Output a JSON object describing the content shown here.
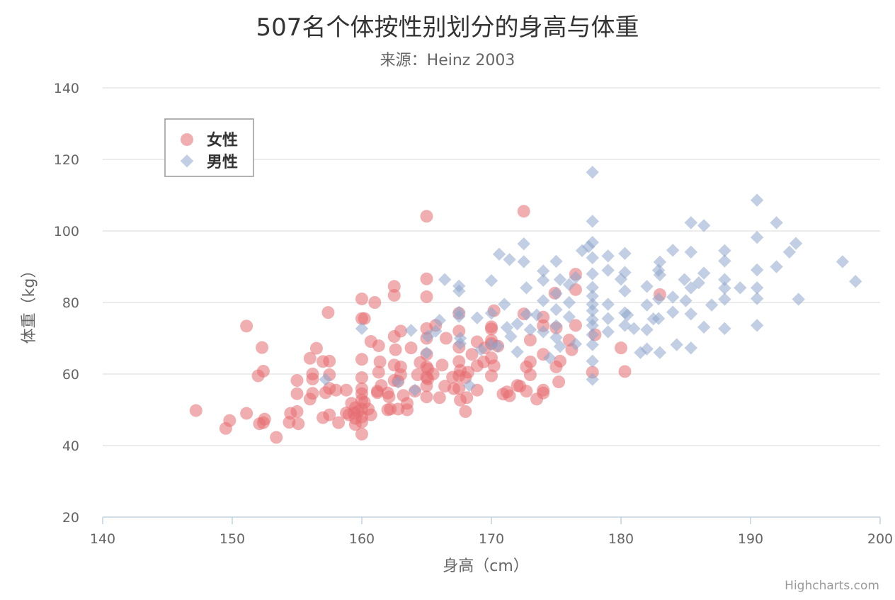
{
  "chart_data": {
    "type": "scatter",
    "title": "507名个体按性别划分的身高与体重",
    "subtitle": "来源：Heinz 2003",
    "xlabel": "身高（cm）",
    "ylabel": "体重（kg）",
    "xlim": [
      140,
      200
    ],
    "ylim": [
      20,
      140
    ],
    "xticks": [
      "140",
      "150",
      "160",
      "170",
      "180",
      "190",
      "200"
    ],
    "yticks": [
      "20",
      "40",
      "60",
      "80",
      "100",
      "120",
      "140"
    ],
    "grid": true,
    "legend": "top-left",
    "credits": "Highcharts.com",
    "series": [
      {
        "name": "女性",
        "color": "#e56b6f",
        "marker": "circle",
        "points": [
          [
            147.2,
            49.8
          ],
          [
            149.5,
            44.8
          ],
          [
            149.8,
            47.0
          ],
          [
            151.1,
            73.4
          ],
          [
            151.1,
            49.0
          ],
          [
            152.0,
            59.5
          ],
          [
            152.1,
            46.1
          ],
          [
            152.3,
            67.4
          ],
          [
            152.4,
            60.8
          ],
          [
            152.4,
            46.4
          ],
          [
            152.5,
            47.4
          ],
          [
            153.4,
            42.3
          ],
          [
            154.4,
            46.5
          ],
          [
            154.5,
            49.0
          ],
          [
            155.0,
            49.5
          ],
          [
            155.0,
            58.2
          ],
          [
            155.0,
            54.5
          ],
          [
            155.1,
            46.1
          ],
          [
            156.0,
            64.4
          ],
          [
            156.0,
            53.0
          ],
          [
            156.2,
            60.0
          ],
          [
            156.2,
            58.6
          ],
          [
            156.2,
            54.6
          ],
          [
            156.5,
            67.2
          ],
          [
            157.0,
            47.8
          ],
          [
            157.0,
            63.5
          ],
          [
            157.2,
            54.8
          ],
          [
            157.4,
            77.2
          ],
          [
            157.5,
            59.8
          ],
          [
            157.5,
            63.6
          ],
          [
            157.5,
            48.6
          ],
          [
            157.5,
            56.0
          ],
          [
            158.0,
            55.5
          ],
          [
            158.2,
            46.4
          ],
          [
            158.8,
            55.5
          ],
          [
            158.8,
            49.1
          ],
          [
            159.0,
            48.6
          ],
          [
            159.2,
            51.8
          ],
          [
            159.4,
            49.1
          ],
          [
            159.5,
            47.6
          ],
          [
            159.5,
            50.6
          ],
          [
            159.5,
            45.9
          ],
          [
            159.7,
            49.5
          ],
          [
            160.0,
            81.0
          ],
          [
            160.0,
            75.5
          ],
          [
            160.0,
            64.1
          ],
          [
            160.0,
            59.0
          ],
          [
            160.0,
            55.9
          ],
          [
            160.0,
            54.5
          ],
          [
            160.0,
            52.7
          ],
          [
            160.0,
            50.2
          ],
          [
            160.0,
            48.0
          ],
          [
            160.0,
            46.6
          ],
          [
            160.0,
            43.2
          ],
          [
            160.2,
            75.5
          ],
          [
            160.2,
            52.1
          ],
          [
            160.5,
            50.2
          ],
          [
            160.7,
            48.6
          ],
          [
            160.7,
            69.1
          ],
          [
            161.0,
            80.0
          ],
          [
            161.2,
            55.2
          ],
          [
            161.2,
            54.8
          ],
          [
            161.3,
            67.9
          ],
          [
            161.3,
            60.5
          ],
          [
            161.4,
            63.4
          ],
          [
            161.5,
            56.8
          ],
          [
            162.0,
            54.7
          ],
          [
            162.0,
            50.0
          ],
          [
            162.1,
            53.6
          ],
          [
            162.2,
            50.2
          ],
          [
            162.5,
            84.5
          ],
          [
            162.5,
            82.0
          ],
          [
            162.5,
            70.5
          ],
          [
            162.5,
            62.5
          ],
          [
            162.5,
            58.2
          ],
          [
            162.6,
            66.8
          ],
          [
            162.8,
            58.0
          ],
          [
            162.8,
            50.2
          ],
          [
            163.0,
            72.0
          ],
          [
            163.0,
            62.0
          ],
          [
            163.0,
            59.8
          ],
          [
            163.2,
            54.0
          ],
          [
            163.5,
            50.0
          ],
          [
            163.5,
            51.8
          ],
          [
            163.8,
            67.3
          ],
          [
            164.1,
            55.2
          ],
          [
            164.3,
            59.8
          ],
          [
            164.5,
            63.2
          ],
          [
            165.0,
            104.1
          ],
          [
            165.0,
            86.6
          ],
          [
            165.0,
            81.6
          ],
          [
            165.0,
            72.7
          ],
          [
            165.0,
            70.0
          ],
          [
            165.0,
            65.5
          ],
          [
            165.0,
            62.0
          ],
          [
            165.0,
            59.1
          ],
          [
            165.0,
            56.7
          ],
          [
            165.0,
            53.6
          ],
          [
            165.1,
            61.4
          ],
          [
            165.1,
            58.6
          ],
          [
            165.5,
            60.0
          ],
          [
            165.7,
            73.6
          ],
          [
            166.0,
            53.4
          ],
          [
            166.2,
            62.5
          ],
          [
            166.4,
            56.6
          ],
          [
            166.5,
            70.0
          ],
          [
            167.0,
            59.1
          ],
          [
            167.1,
            55.9
          ],
          [
            167.5,
            77.0
          ],
          [
            167.5,
            72.0
          ],
          [
            167.5,
            67.5
          ],
          [
            167.5,
            63.5
          ],
          [
            167.5,
            59.5
          ],
          [
            167.5,
            56.0
          ],
          [
            167.6,
            61.0
          ],
          [
            167.6,
            52.7
          ],
          [
            168.0,
            59.0
          ],
          [
            168.0,
            49.5
          ],
          [
            168.1,
            53.4
          ],
          [
            168.2,
            60.5
          ],
          [
            168.5,
            65.5
          ],
          [
            168.9,
            69.0
          ],
          [
            168.9,
            62.3
          ],
          [
            168.9,
            55.5
          ],
          [
            169.4,
            63.4
          ],
          [
            169.5,
            67.3
          ],
          [
            170.0,
            73.2
          ],
          [
            170.0,
            72.6
          ],
          [
            170.0,
            69.4
          ],
          [
            170.0,
            68.5
          ],
          [
            170.0,
            64.5
          ],
          [
            170.0,
            59.5
          ],
          [
            170.2,
            77.7
          ],
          [
            170.2,
            62.3
          ],
          [
            170.5,
            67.8
          ],
          [
            170.9,
            54.4
          ],
          [
            171.2,
            55.0
          ],
          [
            171.4,
            53.9
          ],
          [
            172.0,
            56.8
          ],
          [
            172.2,
            56.6
          ],
          [
            172.5,
            105.5
          ],
          [
            172.5,
            76.8
          ],
          [
            172.7,
            62.0
          ],
          [
            172.7,
            55.2
          ],
          [
            173.0,
            69.5
          ],
          [
            173.0,
            63.4
          ],
          [
            173.0,
            59.8
          ],
          [
            173.5,
            53.0
          ],
          [
            174.0,
            75.9
          ],
          [
            174.0,
            73.5
          ],
          [
            174.0,
            65.5
          ],
          [
            174.0,
            55.5
          ],
          [
            174.0,
            54.7
          ],
          [
            174.9,
            82.6
          ],
          [
            175.0,
            72.9
          ],
          [
            175.0,
            62.0
          ],
          [
            175.2,
            57.8
          ],
          [
            175.3,
            63.6
          ],
          [
            176.0,
            69.5
          ],
          [
            176.2,
            66.8
          ],
          [
            176.5,
            87.9
          ],
          [
            176.5,
            73.6
          ],
          [
            176.5,
            83.6
          ],
          [
            177.8,
            60.5
          ],
          [
            178.0,
            71.0
          ],
          [
            180.0,
            67.3
          ],
          [
            180.3,
            60.7
          ],
          [
            183.0,
            82.2
          ]
        ]
      },
      {
        "name": "男性",
        "color": "#8ea6cc",
        "marker": "diamond",
        "points": [
          [
            157.2,
            58.5
          ],
          [
            160.0,
            72.7
          ],
          [
            162.8,
            57.7
          ],
          [
            163.8,
            72.2
          ],
          [
            164.1,
            55.5
          ],
          [
            165.0,
            65.9
          ],
          [
            165.1,
            70.5
          ],
          [
            165.7,
            72.0
          ],
          [
            166.0,
            75.0
          ],
          [
            166.4,
            86.4
          ],
          [
            167.5,
            84.6
          ],
          [
            167.5,
            83.2
          ],
          [
            167.5,
            77.3
          ],
          [
            167.5,
            76.1
          ],
          [
            167.6,
            70.0
          ],
          [
            167.6,
            68.5
          ],
          [
            168.3,
            56.8
          ],
          [
            168.9,
            75.7
          ],
          [
            169.2,
            66.8
          ],
          [
            170.0,
            86.1
          ],
          [
            170.0,
            77.0
          ],
          [
            170.0,
            68.2
          ],
          [
            170.5,
            67.8
          ],
          [
            170.6,
            93.5
          ],
          [
            171.0,
            79.5
          ],
          [
            171.2,
            73.0
          ],
          [
            171.4,
            92.0
          ],
          [
            171.5,
            70.5
          ],
          [
            172.0,
            74.0
          ],
          [
            172.0,
            66.2
          ],
          [
            172.5,
            96.4
          ],
          [
            172.5,
            91.4
          ],
          [
            172.7,
            84.1
          ],
          [
            172.7,
            76.7
          ],
          [
            173.0,
            72.4
          ],
          [
            173.5,
            76.5
          ],
          [
            174.0,
            88.8
          ],
          [
            174.0,
            86.2
          ],
          [
            174.0,
            80.5
          ],
          [
            174.0,
            71.8
          ],
          [
            174.5,
            64.5
          ],
          [
            175.0,
            91.5
          ],
          [
            175.0,
            82.5
          ],
          [
            175.0,
            78.0
          ],
          [
            175.0,
            73.5
          ],
          [
            175.0,
            70.2
          ],
          [
            175.3,
            86.4
          ],
          [
            175.3,
            67.7
          ],
          [
            176.0,
            85.0
          ],
          [
            176.0,
            80.0
          ],
          [
            176.0,
            76.0
          ],
          [
            176.5,
            87.0
          ],
          [
            176.5,
            68.4
          ],
          [
            177.0,
            94.5
          ],
          [
            177.5,
            95.6
          ],
          [
            177.8,
            116.4
          ],
          [
            177.8,
            102.7
          ],
          [
            177.8,
            96.8
          ],
          [
            177.8,
            92.5
          ],
          [
            177.8,
            88.0
          ],
          [
            177.8,
            84.2
          ],
          [
            177.8,
            81.8
          ],
          [
            177.8,
            79.5
          ],
          [
            177.8,
            77.7
          ],
          [
            177.8,
            75.2
          ],
          [
            177.8,
            73.6
          ],
          [
            177.8,
            71.0
          ],
          [
            177.8,
            68.2
          ],
          [
            177.8,
            63.6
          ],
          [
            177.8,
            58.5
          ],
          [
            179.0,
            93.0
          ],
          [
            179.0,
            89.0
          ],
          [
            179.0,
            79.5
          ],
          [
            179.0,
            75.5
          ],
          [
            179.0,
            71.8
          ],
          [
            180.0,
            86.5
          ],
          [
            180.3,
            93.7
          ],
          [
            180.3,
            88.4
          ],
          [
            180.3,
            83.2
          ],
          [
            180.3,
            77.1
          ],
          [
            180.3,
            73.6
          ],
          [
            180.5,
            76.5
          ],
          [
            181.0,
            72.7
          ],
          [
            181.5,
            66.0
          ],
          [
            182.0,
            84.5
          ],
          [
            182.0,
            79.3
          ],
          [
            182.0,
            72.4
          ],
          [
            182.0,
            67.0
          ],
          [
            182.5,
            75.4
          ],
          [
            182.9,
            89.0
          ],
          [
            182.9,
            81.0
          ],
          [
            182.9,
            75.5
          ],
          [
            183.0,
            91.3
          ],
          [
            183.0,
            87.7
          ],
          [
            183.0,
            66.0
          ],
          [
            184.0,
            94.6
          ],
          [
            184.0,
            81.5
          ],
          [
            184.0,
            77.3
          ],
          [
            184.3,
            68.2
          ],
          [
            184.9,
            86.4
          ],
          [
            185.0,
            80.5
          ],
          [
            185.4,
            102.3
          ],
          [
            185.4,
            94.1
          ],
          [
            185.4,
            84.1
          ],
          [
            185.4,
            76.8
          ],
          [
            185.4,
            67.3
          ],
          [
            186.0,
            85.5
          ],
          [
            186.4,
            101.5
          ],
          [
            186.4,
            88.2
          ],
          [
            186.4,
            73.1
          ],
          [
            187.0,
            79.3
          ],
          [
            188.0,
            94.5
          ],
          [
            188.0,
            91.6
          ],
          [
            188.0,
            86.4
          ],
          [
            188.0,
            84.0
          ],
          [
            188.0,
            80.9
          ],
          [
            188.0,
            72.7
          ],
          [
            189.2,
            84.1
          ],
          [
            190.5,
            108.6
          ],
          [
            190.5,
            98.2
          ],
          [
            190.5,
            89.1
          ],
          [
            190.5,
            84.1
          ],
          [
            190.5,
            81.1
          ],
          [
            190.5,
            73.6
          ],
          [
            192.0,
            102.3
          ],
          [
            192.0,
            90.0
          ],
          [
            193.0,
            94.1
          ],
          [
            193.5,
            96.5
          ],
          [
            193.7,
            80.9
          ],
          [
            197.1,
            91.4
          ],
          [
            198.1,
            85.9
          ]
        ]
      }
    ]
  }
}
